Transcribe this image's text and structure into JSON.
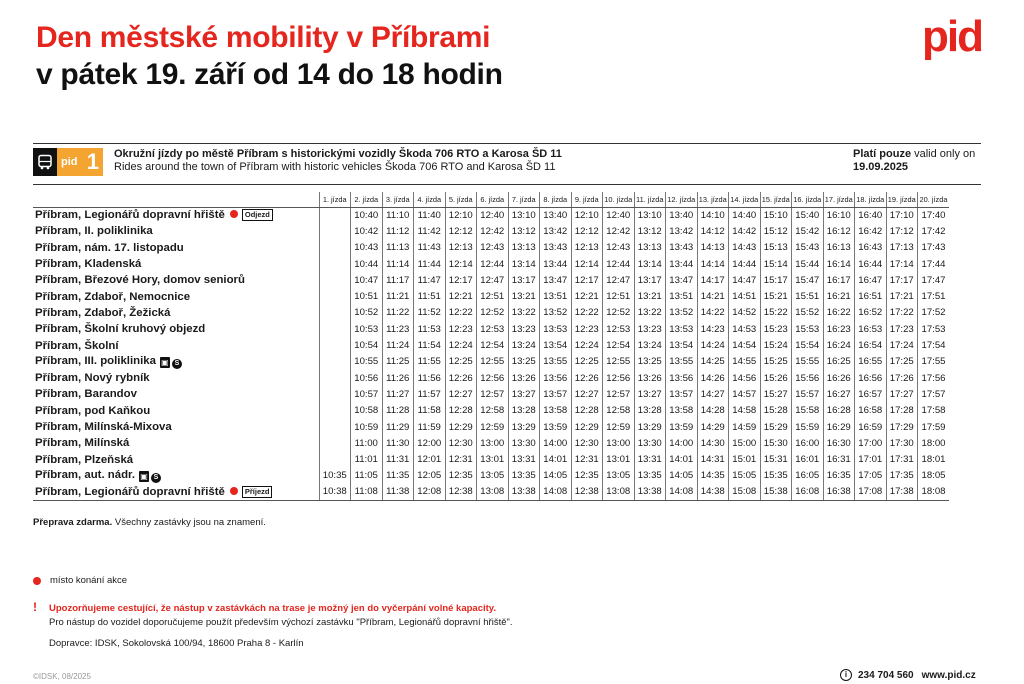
{
  "header": {
    "title_line1": "Den městské mobility v Příbrami",
    "title_line2": "v pátek 19. září od 14 do 18 hodin",
    "logo": "pid"
  },
  "route": {
    "badge_brand": "pid",
    "badge_number": "1",
    "badge_color": "#f4a531",
    "badge_icon": "bus-icon",
    "desc_cz": "Okružní jízdy po městě Příbram s historickými vozidly Škoda 706 RTO a Karosa ŠD 11",
    "desc_en": "Rides around the town of Příbram with historic vehicles Škoda 706 RTO and Karosa ŠD 11",
    "valid_cz": "Platí pouze",
    "valid_en": "valid only on",
    "valid_date": "19.09.2025"
  },
  "columns": [
    "1. jízda",
    "2. jízda",
    "3. jízda",
    "4. jízda",
    "5. jízda",
    "6. jízda",
    "7. jízda",
    "8. jízda",
    "9. jízda",
    "10. jízda",
    "11. jízda",
    "12. jízda",
    "13. jízda",
    "14. jízda",
    "15. jízda",
    "16. jízda",
    "17. jízda",
    "18. jízda",
    "19. jízda",
    "20. jízda"
  ],
  "stops": [
    {
      "name": "Příbram, Legionářů dopravní hřiště",
      "dot": true,
      "tag": "Odjezd",
      "times": [
        "",
        "10:40",
        "11:10",
        "11:40",
        "12:10",
        "12:40",
        "13:10",
        "13:40",
        "12:10",
        "12:40",
        "13:10",
        "13:40",
        "14:10",
        "14:40",
        "15:10",
        "15:40",
        "16:10",
        "16:40",
        "17:10",
        "17:40"
      ]
    },
    {
      "name": "Příbram, II. poliklinika",
      "times": [
        "",
        "10:42",
        "11:12",
        "11:42",
        "12:12",
        "12:42",
        "13:12",
        "13:42",
        "12:12",
        "12:42",
        "13:12",
        "13:42",
        "14:12",
        "14:42",
        "15:12",
        "15:42",
        "16:12",
        "16:42",
        "17:12",
        "17:42"
      ]
    },
    {
      "name": "Příbram, nám. 17. listopadu",
      "times": [
        "",
        "10:43",
        "11:13",
        "11:43",
        "12:13",
        "12:43",
        "13:13",
        "13:43",
        "12:13",
        "12:43",
        "13:13",
        "13:43",
        "14:13",
        "14:43",
        "15:13",
        "15:43",
        "16:13",
        "16:43",
        "17:13",
        "17:43"
      ]
    },
    {
      "name": "Příbram, Kladenská",
      "times": [
        "",
        "10:44",
        "11:14",
        "11:44",
        "12:14",
        "12:44",
        "13:14",
        "13:44",
        "12:14",
        "12:44",
        "13:14",
        "13:44",
        "14:14",
        "14:44",
        "15:14",
        "15:44",
        "16:14",
        "16:44",
        "17:14",
        "17:44"
      ]
    },
    {
      "name": "Příbram, Březové Hory, domov seniorů",
      "times": [
        "",
        "10:47",
        "11:17",
        "11:47",
        "12:17",
        "12:47",
        "13:17",
        "13:47",
        "12:17",
        "12:47",
        "13:17",
        "13:47",
        "14:17",
        "14:47",
        "15:17",
        "15:47",
        "16:17",
        "16:47",
        "17:17",
        "17:47"
      ]
    },
    {
      "name": "Příbram, Zdaboř, Nemocnice",
      "times": [
        "",
        "10:51",
        "11:21",
        "11:51",
        "12:21",
        "12:51",
        "13:21",
        "13:51",
        "12:21",
        "12:51",
        "13:21",
        "13:51",
        "14:21",
        "14:51",
        "15:21",
        "15:51",
        "16:21",
        "16:51",
        "17:21",
        "17:51"
      ]
    },
    {
      "name": "Příbram, Zdaboř, Žežická",
      "times": [
        "",
        "10:52",
        "11:22",
        "11:52",
        "12:22",
        "12:52",
        "13:22",
        "13:52",
        "12:22",
        "12:52",
        "13:22",
        "13:52",
        "14:22",
        "14:52",
        "15:22",
        "15:52",
        "16:22",
        "16:52",
        "17:22",
        "17:52"
      ]
    },
    {
      "name": "Příbram, Školní kruhový objezd",
      "times": [
        "",
        "10:53",
        "11:23",
        "11:53",
        "12:23",
        "12:53",
        "13:23",
        "13:53",
        "12:23",
        "12:53",
        "13:23",
        "13:53",
        "14:23",
        "14:53",
        "15:23",
        "15:53",
        "16:23",
        "16:53",
        "17:23",
        "17:53"
      ]
    },
    {
      "name": "Příbram, Školní",
      "times": [
        "",
        "10:54",
        "11:24",
        "11:54",
        "12:24",
        "12:54",
        "13:24",
        "13:54",
        "12:24",
        "12:54",
        "13:24",
        "13:54",
        "14:24",
        "14:54",
        "15:24",
        "15:54",
        "16:24",
        "16:54",
        "17:24",
        "17:54"
      ]
    },
    {
      "name": "Příbram, III. poliklinika",
      "train": true,
      "times": [
        "",
        "10:55",
        "11:25",
        "11:55",
        "12:25",
        "12:55",
        "13:25",
        "13:55",
        "12:25",
        "12:55",
        "13:25",
        "13:55",
        "14:25",
        "14:55",
        "15:25",
        "15:55",
        "16:25",
        "16:55",
        "17:25",
        "17:55"
      ]
    },
    {
      "name": "Příbram, Nový rybník",
      "times": [
        "",
        "10:56",
        "11:26",
        "11:56",
        "12:26",
        "12:56",
        "13:26",
        "13:56",
        "12:26",
        "12:56",
        "13:26",
        "13:56",
        "14:26",
        "14:56",
        "15:26",
        "15:56",
        "16:26",
        "16:56",
        "17:26",
        "17:56"
      ]
    },
    {
      "name": "Příbram, Barandov",
      "times": [
        "",
        "10:57",
        "11:27",
        "11:57",
        "12:27",
        "12:57",
        "13:27",
        "13:57",
        "12:27",
        "12:57",
        "13:27",
        "13:57",
        "14:27",
        "14:57",
        "15:27",
        "15:57",
        "16:27",
        "16:57",
        "17:27",
        "17:57"
      ]
    },
    {
      "name": "Příbram, pod Kaňkou",
      "times": [
        "",
        "10:58",
        "11:28",
        "11:58",
        "12:28",
        "12:58",
        "13:28",
        "13:58",
        "12:28",
        "12:58",
        "13:28",
        "13:58",
        "14:28",
        "14:58",
        "15:28",
        "15:58",
        "16:28",
        "16:58",
        "17:28",
        "17:58"
      ]
    },
    {
      "name": "Příbram, Milínská-Mixova",
      "times": [
        "",
        "10:59",
        "11:29",
        "11:59",
        "12:29",
        "12:59",
        "13:29",
        "13:59",
        "12:29",
        "12:59",
        "13:29",
        "13:59",
        "14:29",
        "14:59",
        "15:29",
        "15:59",
        "16:29",
        "16:59",
        "17:29",
        "17:59"
      ]
    },
    {
      "name": "Příbram, Milínská",
      "times": [
        "",
        "11:00",
        "11:30",
        "12:00",
        "12:30",
        "13:00",
        "13:30",
        "14:00",
        "12:30",
        "13:00",
        "13:30",
        "14:00",
        "14:30",
        "15:00",
        "15:30",
        "16:00",
        "16:30",
        "17:00",
        "17:30",
        "18:00"
      ]
    },
    {
      "name": "Příbram, Plzeňská",
      "times": [
        "",
        "11:01",
        "11:31",
        "12:01",
        "12:31",
        "13:01",
        "13:31",
        "14:01",
        "12:31",
        "13:01",
        "13:31",
        "14:01",
        "14:31",
        "15:01",
        "15:31",
        "16:01",
        "16:31",
        "17:01",
        "17:31",
        "18:01"
      ]
    },
    {
      "name": "Příbram, aut. nádr.",
      "train": true,
      "times": [
        "10:35",
        "11:05",
        "11:35",
        "12:05",
        "12:35",
        "13:05",
        "13:35",
        "14:05",
        "12:35",
        "13:05",
        "13:35",
        "14:05",
        "14:35",
        "15:05",
        "15:35",
        "16:05",
        "16:35",
        "17:05",
        "17:35",
        "18:05"
      ]
    },
    {
      "name": "Příbram, Legionářů dopravní hřiště",
      "dot": true,
      "tag": "Příjezd",
      "times": [
        "10:38",
        "11:08",
        "11:38",
        "12:08",
        "12:38",
        "13:08",
        "13:38",
        "14:08",
        "12:38",
        "13:08",
        "13:38",
        "14:08",
        "14:38",
        "15:08",
        "15:38",
        "16:08",
        "16:38",
        "17:08",
        "17:38",
        "18:08"
      ]
    }
  ],
  "footer": {
    "fare_bold": "Přeprava zdarma.",
    "fare_rest": " Všechny zastávky jsou na znamení.",
    "legend_text": "místo konání akce",
    "warning": "Upozorňujeme cestující, že nástup v zastávkách na trase je možný jen do vyčerpání volné kapacity.",
    "recommendation": "Pro nástup do vozidel doporučujeme použít především výchozí zastávku \"Příbram, Legionářů dopravní hřiště\".",
    "carrier": "Dopravce: IDSK, Sokolovská 100/94, 18600 Praha 8 - Karlín",
    "copyright": "©IDSK, 08/2025",
    "phone": "234 704 560",
    "website": "www.pid.cz"
  },
  "colors": {
    "accent": "#e4261e",
    "badge": "#f4a531"
  }
}
